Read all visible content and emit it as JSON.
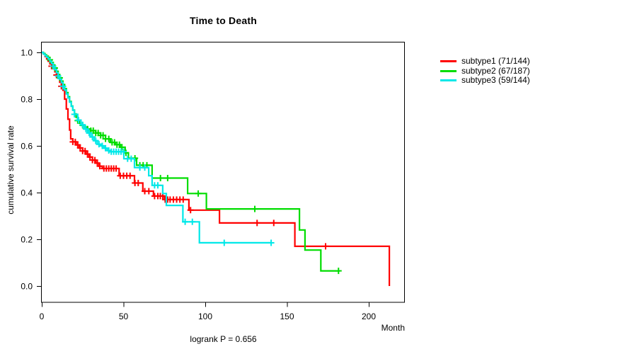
{
  "chart_data": {
    "type": "line",
    "subtype": "kaplan-meier-step-survival",
    "title": "Time to Death",
    "xlabel": "Month",
    "ylabel": "cumulative survival rate",
    "annotation": "logrank P = 0.656",
    "x_ticks": [
      0,
      50,
      100,
      150,
      200
    ],
    "y_ticks": [
      0.0,
      0.2,
      0.4,
      0.6,
      0.8,
      1.0
    ],
    "y_tick_labels": [
      "0.0",
      "0.2",
      "0.4",
      "0.6",
      "0.8",
      "1.0"
    ],
    "xlim": [
      0,
      222
    ],
    "ylim": [
      0,
      1.0
    ],
    "grid": false,
    "legend_position": "right",
    "axis_color": "#000000",
    "background": "#ffffff",
    "series": [
      {
        "name": "subtype1",
        "label": "subtype1 (71/144)",
        "events": 71,
        "n": 144,
        "color": "#ff0000",
        "steps": [
          [
            0,
            1.0
          ],
          [
            1,
            0.993
          ],
          [
            2,
            0.983
          ],
          [
            3,
            0.972
          ],
          [
            4,
            0.962
          ],
          [
            5,
            0.951
          ],
          [
            6,
            0.941
          ],
          [
            7,
            0.93
          ],
          [
            8,
            0.917
          ],
          [
            9,
            0.903
          ],
          [
            10,
            0.889
          ],
          [
            11,
            0.872
          ],
          [
            12,
            0.855
          ],
          [
            13,
            0.838
          ],
          [
            14,
            0.8
          ],
          [
            15,
            0.758
          ],
          [
            16,
            0.714
          ],
          [
            17,
            0.668
          ],
          [
            17.7,
            0.63
          ],
          [
            19,
            0.617
          ],
          [
            21,
            0.604
          ],
          [
            23,
            0.591
          ],
          [
            25,
            0.578
          ],
          [
            27,
            0.565
          ],
          [
            29,
            0.552
          ],
          [
            31,
            0.539
          ],
          [
            33,
            0.526
          ],
          [
            35,
            0.513
          ],
          [
            37,
            0.503
          ],
          [
            47.3,
            0.472
          ],
          [
            56.7,
            0.441
          ],
          [
            61.8,
            0.406
          ],
          [
            68.3,
            0.385
          ],
          [
            75,
            0.37
          ],
          [
            90,
            0.325
          ],
          [
            108.7,
            0.27
          ],
          [
            154.8,
            0.17
          ],
          [
            212.6,
            0.0
          ]
        ],
        "censor_ticks": [
          6,
          9,
          12,
          19,
          20.5,
          22,
          23.5,
          25,
          26.5,
          28,
          29.5,
          31,
          32.5,
          34,
          35.5,
          38,
          39.5,
          41,
          42.5,
          44,
          45.5,
          48,
          50,
          52,
          54,
          57,
          59,
          63,
          65.5,
          69,
          71,
          72.5,
          74,
          75.5,
          77,
          78.5,
          80.5,
          82.5,
          84.5,
          86.5,
          91,
          131.7,
          141.9,
          173.6
        ]
      },
      {
        "name": "subtype2",
        "label": "subtype2 (67/187)",
        "events": 67,
        "n": 187,
        "color": "#00dd00",
        "steps": [
          [
            0,
            1.0
          ],
          [
            1,
            0.995
          ],
          [
            2,
            0.989
          ],
          [
            3,
            0.984
          ],
          [
            4,
            0.978
          ],
          [
            5,
            0.968
          ],
          [
            6,
            0.957
          ],
          [
            7,
            0.946
          ],
          [
            8,
            0.933
          ],
          [
            9,
            0.919
          ],
          [
            10,
            0.905
          ],
          [
            11,
            0.891
          ],
          [
            12,
            0.877
          ],
          [
            13,
            0.862
          ],
          [
            14,
            0.845
          ],
          [
            15,
            0.828
          ],
          [
            16,
            0.81
          ],
          [
            17,
            0.79
          ],
          [
            18,
            0.77
          ],
          [
            19,
            0.753
          ],
          [
            20,
            0.737
          ],
          [
            21,
            0.722
          ],
          [
            22,
            0.708
          ],
          [
            23,
            0.697
          ],
          [
            24,
            0.688
          ],
          [
            26,
            0.68
          ],
          [
            28,
            0.672
          ],
          [
            30,
            0.665
          ],
          [
            33,
            0.655
          ],
          [
            36,
            0.645
          ],
          [
            39,
            0.63
          ],
          [
            42,
            0.615
          ],
          [
            45,
            0.605
          ],
          [
            48,
            0.594
          ],
          [
            51,
            0.57
          ],
          [
            53,
            0.547
          ],
          [
            58,
            0.517
          ],
          [
            67.5,
            0.462
          ],
          [
            89.2,
            0.396
          ],
          [
            100.7,
            0.33
          ],
          [
            157.6,
            0.24
          ],
          [
            161,
            0.154
          ],
          [
            170.7,
            0.065
          ],
          [
            182.3,
            0.065
          ]
        ],
        "censor_ticks": [
          5,
          8,
          11,
          22,
          25,
          28,
          30,
          31.5,
          33,
          34.5,
          36,
          37.5,
          39,
          41,
          43,
          44.5,
          46,
          47.5,
          49,
          51.5,
          57,
          60,
          62,
          64.3,
          72.6,
          77,
          95.7,
          130.3,
          181.5
        ]
      },
      {
        "name": "subtype3",
        "label": "subtype3 (59/144)",
        "events": 59,
        "n": 144,
        "color": "#00e8e8",
        "steps": [
          [
            0,
            1.0
          ],
          [
            1,
            0.993
          ],
          [
            2,
            0.986
          ],
          [
            3,
            0.979
          ],
          [
            4,
            0.972
          ],
          [
            5,
            0.962
          ],
          [
            6,
            0.952
          ],
          [
            7,
            0.941
          ],
          [
            8,
            0.927
          ],
          [
            9,
            0.913
          ],
          [
            10,
            0.899
          ],
          [
            11,
            0.885
          ],
          [
            12,
            0.871
          ],
          [
            13,
            0.855
          ],
          [
            14,
            0.839
          ],
          [
            15,
            0.822
          ],
          [
            16,
            0.805
          ],
          [
            17,
            0.787
          ],
          [
            18,
            0.769
          ],
          [
            19,
            0.752
          ],
          [
            20,
            0.735
          ],
          [
            22,
            0.71
          ],
          [
            24,
            0.69
          ],
          [
            26,
            0.672
          ],
          [
            28,
            0.655
          ],
          [
            30,
            0.638
          ],
          [
            32,
            0.622
          ],
          [
            34,
            0.607
          ],
          [
            36,
            0.6
          ],
          [
            38,
            0.59
          ],
          [
            40,
            0.58
          ],
          [
            41.5,
            0.575
          ],
          [
            50.2,
            0.545
          ],
          [
            56.7,
            0.507
          ],
          [
            65.4,
            0.472
          ],
          [
            67.5,
            0.431
          ],
          [
            74,
            0.396
          ],
          [
            76.2,
            0.345
          ],
          [
            86.3,
            0.275
          ],
          [
            96.4,
            0.185
          ],
          [
            140.3,
            0.185
          ]
        ],
        "censor_ticks": [
          7,
          10,
          13,
          20,
          22.5,
          25,
          27,
          29,
          31,
          33,
          35,
          37,
          39,
          41,
          42.5,
          44,
          45.5,
          47,
          48.5,
          50,
          52.5,
          54.7,
          60,
          63,
          69,
          71,
          87.7,
          92.1,
          111.6,
          140.3
        ]
      }
    ]
  }
}
